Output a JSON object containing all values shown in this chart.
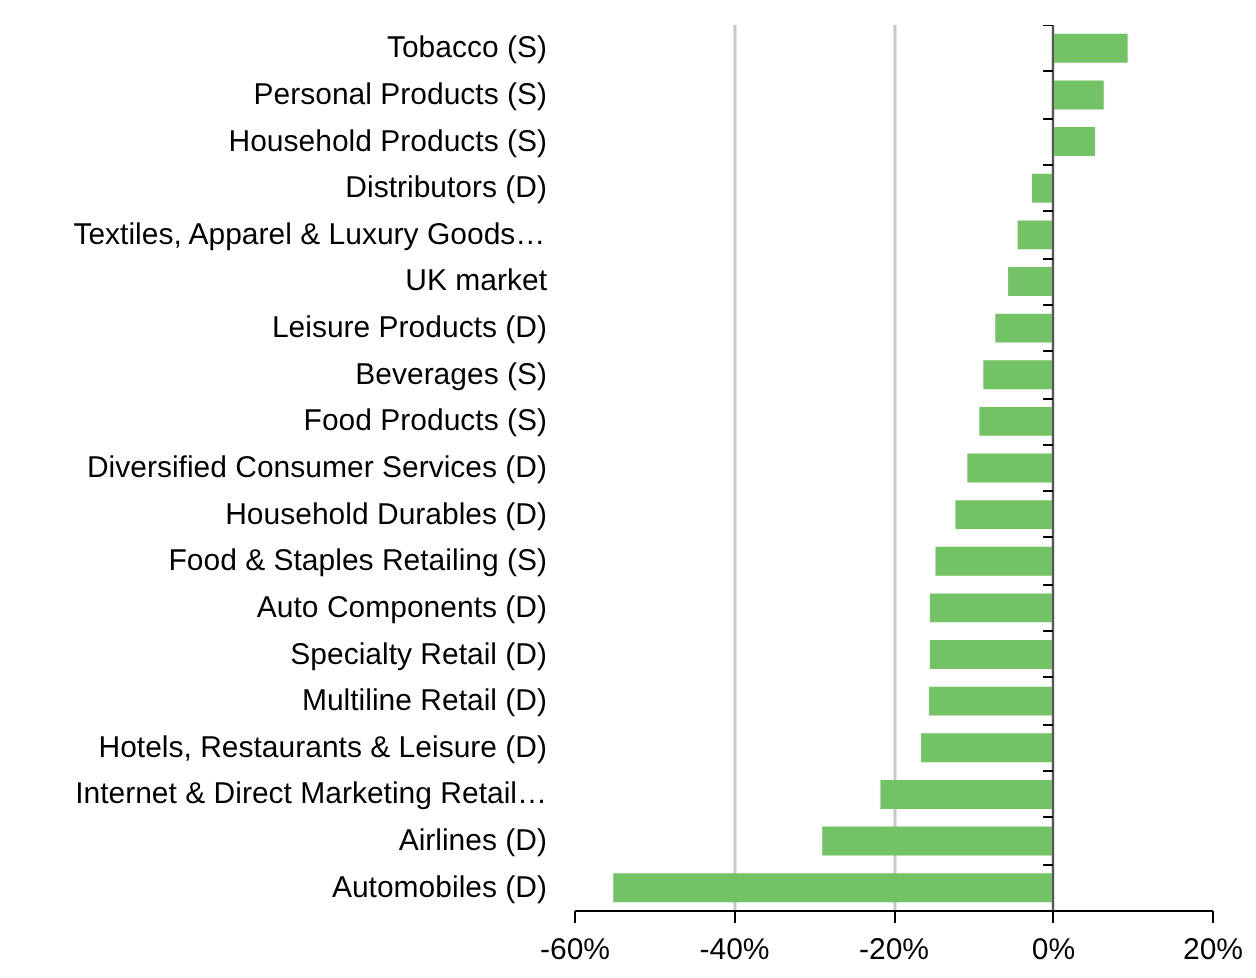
{
  "chart_data": {
    "type": "bar",
    "orientation": "horizontal",
    "categories": [
      "Tobacco (S)",
      "Personal Products (S)",
      "Household Products (S)",
      "Distributors (D)",
      "Textiles, Apparel & Luxury Goods…",
      "UK market",
      "Leisure Products (D)",
      "Beverages (S)",
      "Food Products (S)",
      "Diversified Consumer Services (D)",
      "Household Durables (D)",
      "Food & Staples Retailing (S)",
      "Auto Components (D)",
      "Specialty Retail (D)",
      "Multiline Retail (D)",
      "Hotels, Restaurants & Leisure (D)",
      "Internet & Direct Marketing Retail…",
      "Airlines (D)",
      "Automobiles (D)"
    ],
    "values": [
      9.3,
      6.3,
      5.2,
      -2.7,
      -4.5,
      -5.7,
      -7.3,
      -8.8,
      -9.3,
      -10.8,
      -12.3,
      -14.8,
      -15.5,
      -15.5,
      -15.6,
      -16.6,
      -21.7,
      -29.0,
      -55.2
    ],
    "color": "#73c266",
    "xlim": [
      -60,
      20
    ],
    "xticks": [
      {
        "value": -60,
        "label": "-60%"
      },
      {
        "value": -40,
        "label": "-40%"
      },
      {
        "value": -20,
        "label": "-20%"
      },
      {
        "value": 0,
        "label": "0%"
      },
      {
        "value": 20,
        "label": "20%"
      }
    ],
    "grid": "x"
  }
}
